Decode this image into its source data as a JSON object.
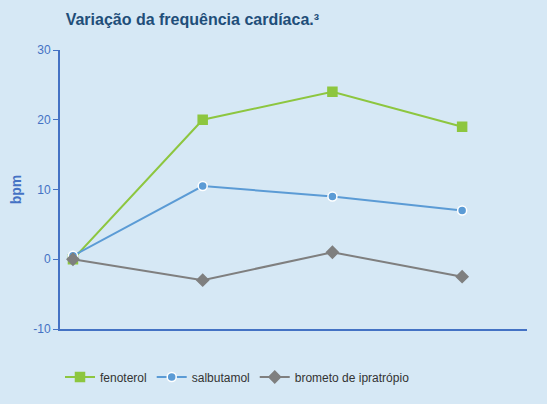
{
  "chart_data": {
    "type": "line",
    "title": "Variação da frequência cardíaca.³",
    "y_label": "bpm",
    "x": [
      0,
      1,
      2,
      3
    ],
    "xlim": [
      -0.1,
      3.5
    ],
    "ylim": [
      -10,
      30
    ],
    "yticks": [
      -10,
      0,
      10,
      20,
      30
    ],
    "tick_labels": "y",
    "grid": false,
    "legend": "lower left",
    "series": [
      {
        "name": "fenoterol",
        "color": "#8dc63f",
        "marker": "square",
        "values": [
          0,
          20,
          24,
          19
        ]
      },
      {
        "name": "salbutamol",
        "color": "#5b9bd5",
        "marker": "circle",
        "values": [
          0.5,
          10.5,
          9,
          7
        ]
      },
      {
        "name": "brometo de ipratrópio",
        "color": "#7f7f7f",
        "marker": "diamond",
        "values": [
          0,
          -3,
          1,
          -2.5
        ]
      }
    ]
  }
}
